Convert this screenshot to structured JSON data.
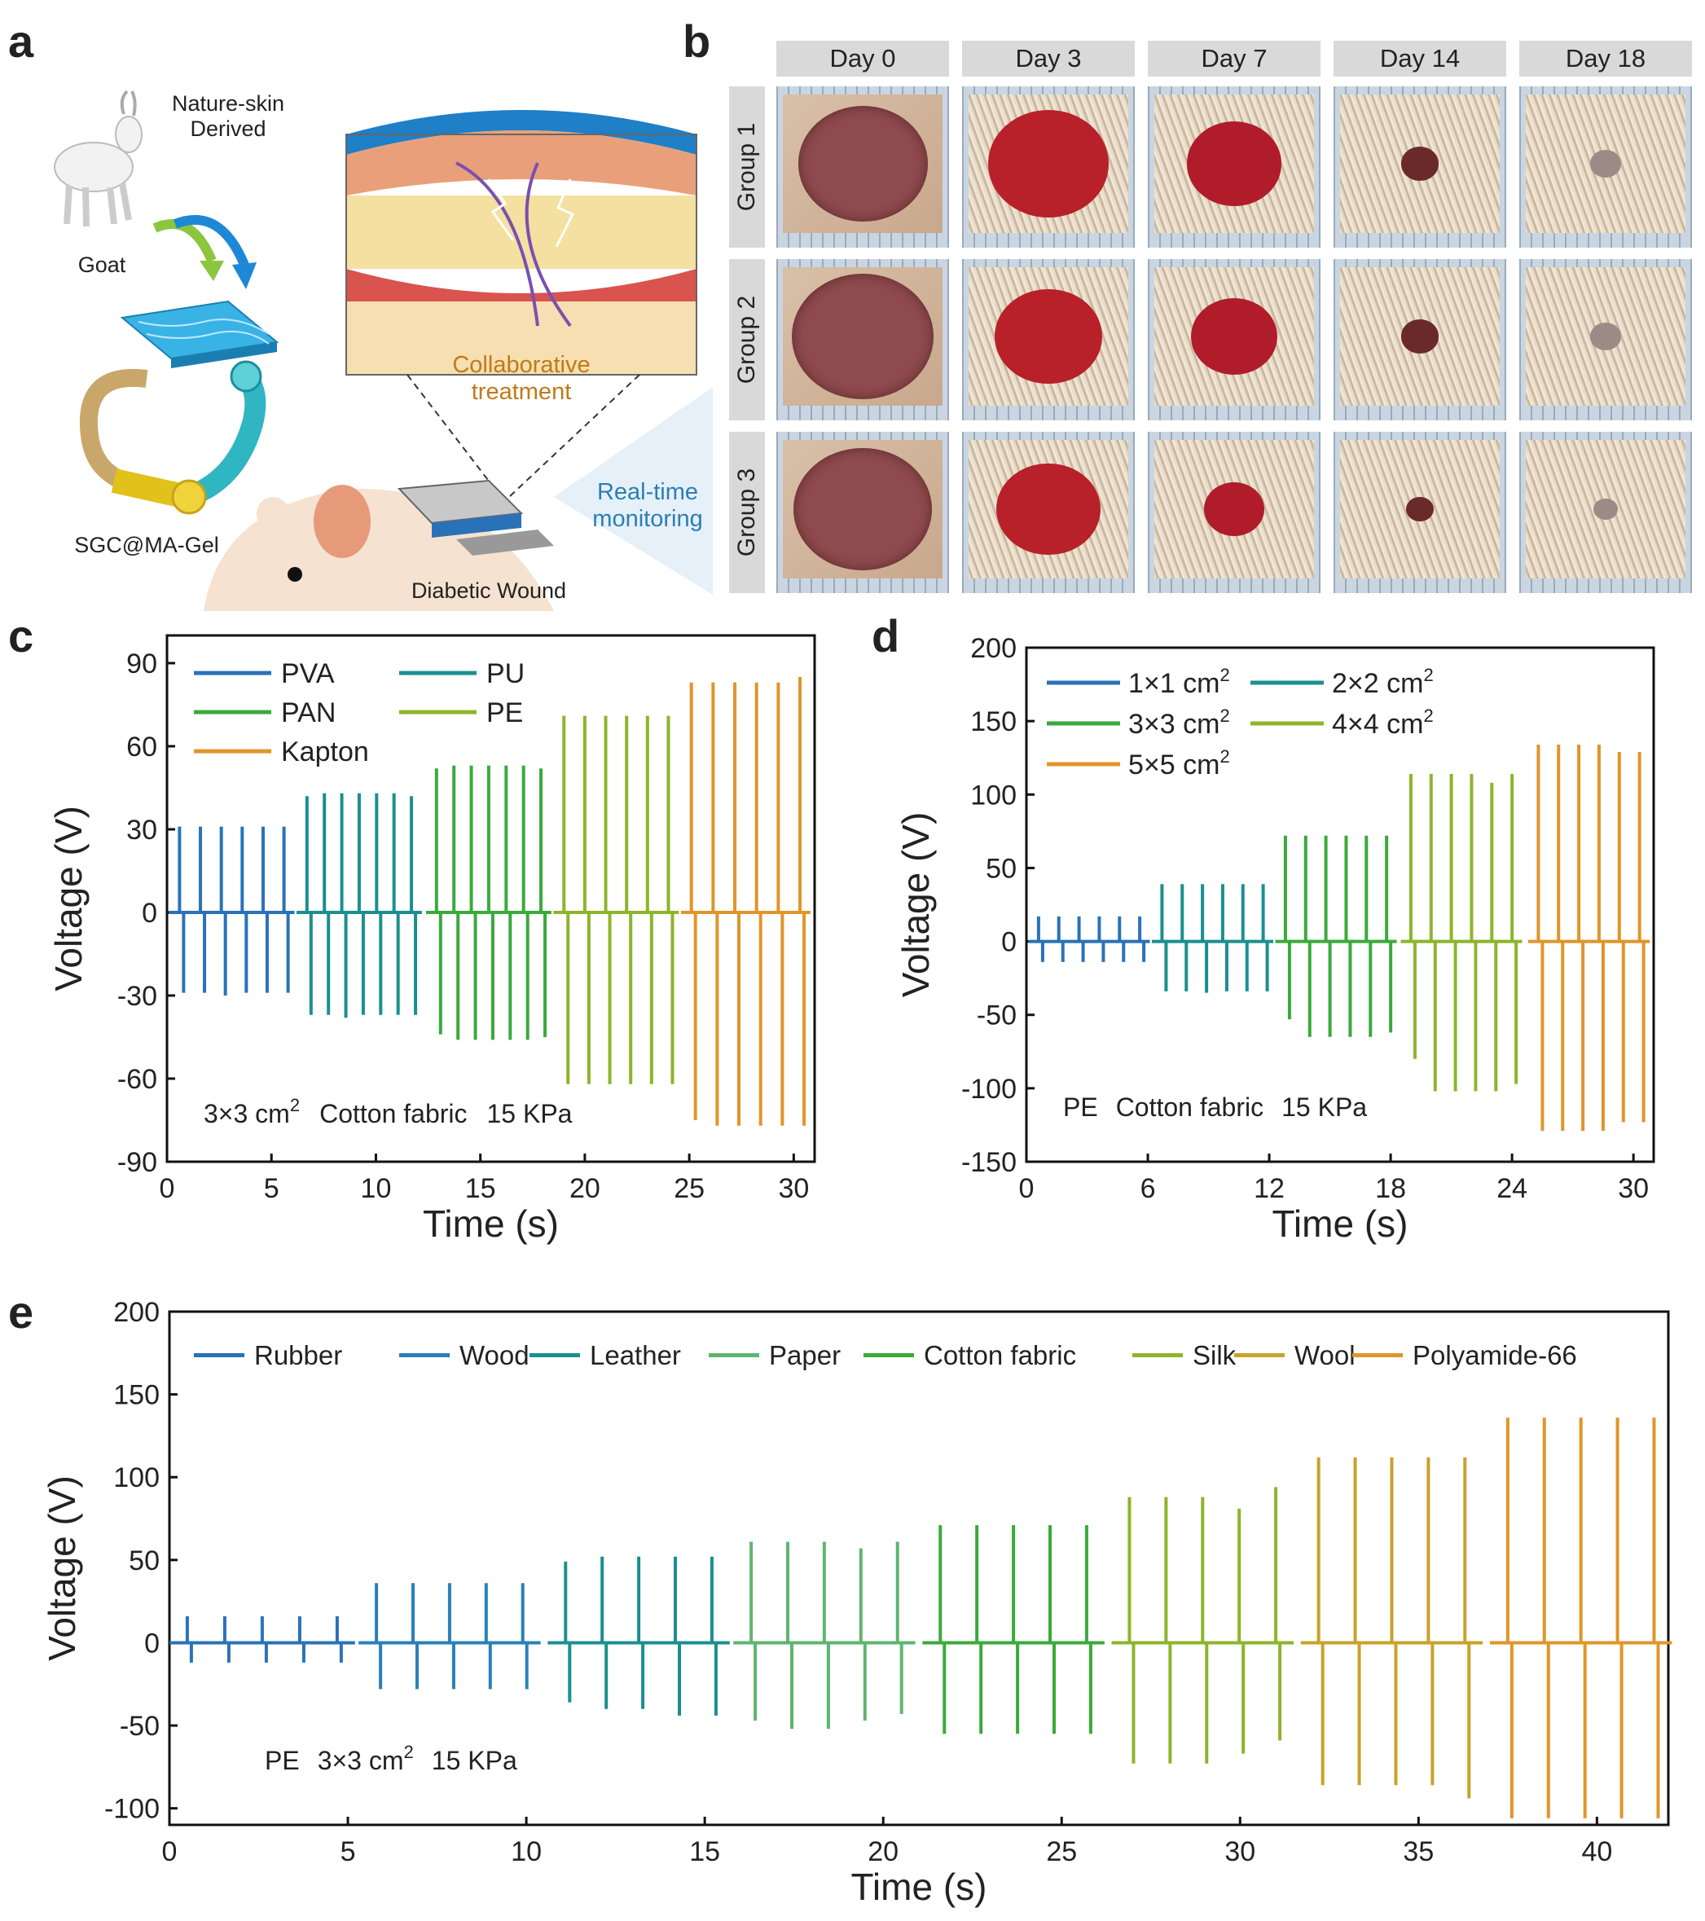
{
  "panel_letters": {
    "a": "a",
    "b": "b",
    "c": "c",
    "d": "d",
    "e": "e"
  },
  "panel_a": {
    "goat": "Goat",
    "nature_line1": "Nature-skin",
    "nature_line2": "Derived",
    "material": "SGC@MA-Gel",
    "collab_line1": "Collaborative",
    "collab_line2": "treatment",
    "realtime_line1": "Real-time",
    "realtime_line2": "monitoring",
    "wound": "Diabetic Wound"
  },
  "panel_b": {
    "days": [
      "Day 0",
      "Day 3",
      "Day 7",
      "Day 14",
      "Day 18"
    ],
    "groups": [
      "Group 1",
      "Group 2",
      "Group 3"
    ]
  },
  "chart_data": [
    {
      "id": "c",
      "type": "line",
      "title": "",
      "xlabel": "Time (s)",
      "ylabel": "Voltage (V)",
      "xlim": [
        0,
        31
      ],
      "ylim": [
        -90,
        100
      ],
      "xticks": [
        0,
        5,
        10,
        15,
        20,
        25,
        30
      ],
      "yticks": [
        90,
        60,
        30,
        0,
        -30,
        -60,
        -90
      ],
      "annotation": "3×3 cm² Cotton fabric 15 KPa",
      "annotation_parts": [
        "3×3 cm",
        "2",
        "Cotton fabric",
        "15 KPa"
      ],
      "legend": [
        "PVA",
        "PU",
        "PAN",
        "PE",
        "Kapton"
      ],
      "series": [
        {
          "name": "PVA",
          "color": "#2a72b8",
          "x_start": 0.6,
          "x_end": 5.6,
          "peaks_pos": [
            31,
            31,
            31,
            31,
            31,
            31
          ],
          "peaks_neg": [
            -29,
            -29,
            -30,
            -29,
            -29,
            -29
          ]
        },
        {
          "name": "PU",
          "color": "#1b8f8f",
          "x_start": 6.7,
          "x_end": 11.7,
          "peaks_pos": [
            42,
            43,
            43,
            43,
            43,
            43,
            42
          ],
          "peaks_neg": [
            -37,
            -37,
            -38,
            -37,
            -37,
            -37,
            -37
          ]
        },
        {
          "name": "PAN",
          "color": "#3aaa3a",
          "x_start": 12.9,
          "x_end": 17.9,
          "peaks_pos": [
            52,
            53,
            53,
            53,
            53,
            53,
            52
          ],
          "peaks_neg": [
            -44,
            -46,
            -46,
            -46,
            -46,
            -46,
            -45
          ]
        },
        {
          "name": "PE",
          "color": "#8db52a",
          "x_start": 19.0,
          "x_end": 24.0,
          "peaks_pos": [
            71,
            71,
            71,
            71,
            71,
            71
          ],
          "peaks_neg": [
            -62,
            -62,
            -62,
            -62,
            -62,
            -62
          ]
        },
        {
          "name": "Kapton",
          "color": "#e0952a",
          "x_start": 25.1,
          "x_end": 30.3,
          "peaks_pos": [
            83,
            83,
            83,
            83,
            83,
            85
          ],
          "peaks_neg": [
            -75,
            -77,
            -77,
            -77,
            -77,
            -77
          ]
        }
      ]
    },
    {
      "id": "d",
      "type": "line",
      "title": "",
      "xlabel": "Time (s)",
      "ylabel": "Voltage (V)",
      "xlim": [
        0,
        31
      ],
      "ylim": [
        -150,
        200
      ],
      "xticks": [
        0,
        6,
        12,
        18,
        24,
        30
      ],
      "yticks": [
        200,
        150,
        100,
        50,
        0,
        -50,
        -100,
        -150
      ],
      "annotation": "PE Cotton fabric 15 KPa",
      "annotation_parts": [
        "PE",
        "Cotton fabric",
        "15 KPa"
      ],
      "legend": [
        "1×1 cm2",
        "2×2 cm2",
        "3×3 cm2",
        "4×4 cm2",
        "5×5 cm2"
      ],
      "legend_parts": [
        [
          "1×1 cm",
          "2"
        ],
        [
          "2×2 cm",
          "2"
        ],
        [
          "3×3 cm",
          "2"
        ],
        [
          "4×4 cm",
          "2"
        ],
        [
          "5×5 cm",
          "2"
        ]
      ],
      "series": [
        {
          "name": "1×1 cm2",
          "color": "#2a72b8",
          "x_start": 0.6,
          "x_end": 5.6,
          "peaks_pos": [
            17,
            17,
            17,
            17,
            17,
            17
          ],
          "peaks_neg": [
            -14,
            -14,
            -14,
            -14,
            -14,
            -14
          ]
        },
        {
          "name": "2×2 cm2",
          "color": "#1b8f8f",
          "x_start": 6.7,
          "x_end": 11.7,
          "peaks_pos": [
            39,
            39,
            39,
            39,
            39,
            39
          ],
          "peaks_neg": [
            -34,
            -34,
            -35,
            -34,
            -34,
            -34
          ]
        },
        {
          "name": "3×3 cm2",
          "color": "#3aaa3a",
          "x_start": 12.8,
          "x_end": 17.8,
          "peaks_pos": [
            72,
            72,
            72,
            72,
            72,
            72
          ],
          "peaks_neg": [
            -53,
            -65,
            -65,
            -65,
            -65,
            -62
          ]
        },
        {
          "name": "4×4 cm2",
          "color": "#8db52a",
          "x_start": 19.0,
          "x_end": 24.0,
          "peaks_pos": [
            114,
            114,
            114,
            114,
            108,
            114
          ],
          "peaks_neg": [
            -80,
            -102,
            -102,
            -102,
            -102,
            -97
          ]
        },
        {
          "name": "5×5 cm2",
          "color": "#e0952a",
          "x_start": 25.3,
          "x_end": 30.3,
          "peaks_pos": [
            134,
            134,
            134,
            134,
            129,
            129
          ],
          "peaks_neg": [
            -129,
            -129,
            -129,
            -129,
            -123,
            -123
          ]
        }
      ]
    },
    {
      "id": "e",
      "type": "line",
      "title": "",
      "xlabel": "Time (s)",
      "ylabel": "Voltage (V)",
      "xlim": [
        0,
        42
      ],
      "ylim": [
        -110,
        200
      ],
      "xticks": [
        0,
        5,
        10,
        15,
        20,
        25,
        30,
        35,
        40
      ],
      "yticks": [
        200,
        150,
        100,
        50,
        0,
        -50,
        -100
      ],
      "annotation": "PE 3×3 cm² 15 KPa",
      "annotation_parts": [
        "PE",
        "3×3 cm",
        "2",
        "15 KPa"
      ],
      "legend": [
        "Rubber",
        "Wood",
        "Leather",
        "Paper",
        "Cotton fabric",
        "Silk",
        "Wool",
        "Polyamide-66"
      ],
      "series": [
        {
          "name": "Rubber",
          "color": "#2a72b8",
          "x_start": 0.5,
          "x_end": 4.7,
          "peaks_pos": [
            16,
            16,
            16,
            16,
            16
          ],
          "peaks_neg": [
            -12,
            -12,
            -12,
            -12,
            -12
          ]
        },
        {
          "name": "Wood",
          "color": "#2a80b8",
          "x_start": 5.8,
          "x_end": 9.9,
          "peaks_pos": [
            36,
            36,
            36,
            36,
            36
          ],
          "peaks_neg": [
            -28,
            -28,
            -28,
            -28,
            -28
          ]
        },
        {
          "name": "Leather",
          "color": "#1b8f8f",
          "x_start": 11.1,
          "x_end": 15.2,
          "peaks_pos": [
            49,
            52,
            52,
            52,
            52
          ],
          "peaks_neg": [
            -36,
            -40,
            -40,
            -44,
            -44
          ]
        },
        {
          "name": "Paper",
          "color": "#5fb56f",
          "x_start": 16.3,
          "x_end": 20.4,
          "peaks_pos": [
            61,
            61,
            61,
            57,
            61
          ],
          "peaks_neg": [
            -47,
            -52,
            -52,
            -47,
            -43
          ]
        },
        {
          "name": "Cotton fabric",
          "color": "#3aaa3a",
          "x_start": 21.6,
          "x_end": 25.7,
          "peaks_pos": [
            71,
            71,
            71,
            71,
            71
          ],
          "peaks_neg": [
            -55,
            -55,
            -55,
            -55,
            -55
          ]
        },
        {
          "name": "Silk",
          "color": "#8db52a",
          "x_start": 26.9,
          "x_end": 31.0,
          "peaks_pos": [
            88,
            88,
            88,
            81,
            94
          ],
          "peaks_neg": [
            -73,
            -73,
            -73,
            -67,
            -59
          ]
        },
        {
          "name": "Wool",
          "color": "#c9a22a",
          "x_start": 32.2,
          "x_end": 36.3,
          "peaks_pos": [
            112,
            112,
            112,
            112,
            112
          ],
          "peaks_neg": [
            -86,
            -86,
            -86,
            -86,
            -94
          ]
        },
        {
          "name": "Polyamide-66",
          "color": "#e0952a",
          "x_start": 37.5,
          "x_end": 41.6,
          "peaks_pos": [
            136,
            136,
            136,
            136,
            136
          ],
          "peaks_neg": [
            -106,
            -106,
            -106,
            -106,
            -106
          ]
        }
      ]
    }
  ]
}
